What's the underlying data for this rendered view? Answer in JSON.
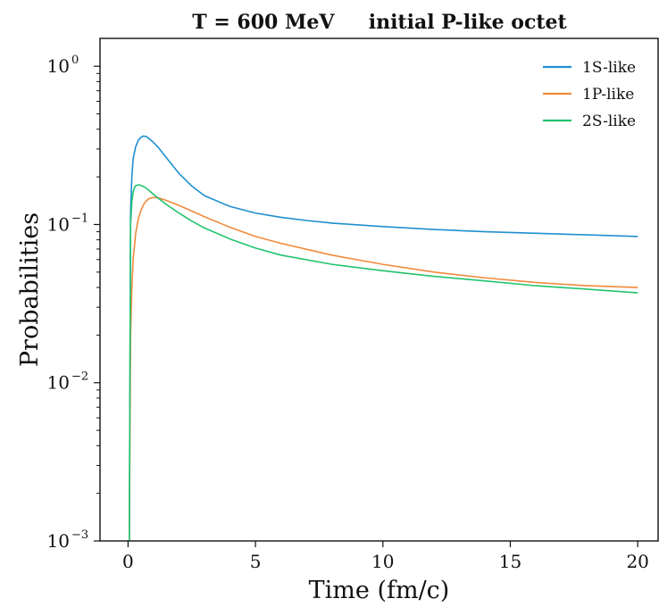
{
  "chart_data": {
    "type": "line",
    "title": "T = 600 MeV     initial P-like octet",
    "xlabel": "Time (fm/c)",
    "ylabel": "Probabilities",
    "xlim": [
      -1.1,
      20.8
    ],
    "ylim": [
      0.001,
      1.5
    ],
    "yscale": "log",
    "xticks": [
      0,
      5,
      10,
      15,
      20
    ],
    "xtick_labels": [
      "0",
      "5",
      "10",
      "15",
      "20"
    ],
    "yticks": [
      {
        "value": 1,
        "base": "10",
        "exp": "0"
      },
      {
        "value": 0.1,
        "base": "10",
        "exp": "−1"
      },
      {
        "value": 0.01,
        "base": "10",
        "exp": "−2"
      },
      {
        "value": 0.001,
        "base": "10",
        "exp": "−3"
      }
    ],
    "grid": false,
    "legend_position": "top-right",
    "series": [
      {
        "name": "1S-like",
        "color": "#1f8fd0",
        "x": [
          0.05,
          0.1,
          0.15,
          0.2,
          0.3,
          0.4,
          0.5,
          0.6,
          0.7,
          0.8,
          1.0,
          1.2,
          1.5,
          2,
          2.5,
          3,
          4,
          5,
          6,
          7,
          8,
          10,
          12,
          14,
          16,
          18,
          20
        ],
        "y": [
          0.001,
          0.12,
          0.2,
          0.26,
          0.31,
          0.34,
          0.355,
          0.362,
          0.36,
          0.352,
          0.33,
          0.305,
          0.265,
          0.21,
          0.175,
          0.152,
          0.13,
          0.118,
          0.111,
          0.106,
          0.102,
          0.097,
          0.093,
          0.09,
          0.088,
          0.086,
          0.084
        ]
      },
      {
        "name": "1P-like",
        "color": "#f08a3c",
        "x": [
          0.05,
          0.1,
          0.15,
          0.2,
          0.3,
          0.4,
          0.5,
          0.6,
          0.7,
          0.8,
          0.9,
          1.0,
          1.1,
          1.2,
          1.5,
          2,
          3,
          4,
          5,
          6,
          8,
          10,
          12,
          14,
          16,
          18,
          20
        ],
        "y": [
          0.001,
          0.02,
          0.04,
          0.06,
          0.088,
          0.108,
          0.122,
          0.133,
          0.14,
          0.145,
          0.147,
          0.148,
          0.148,
          0.147,
          0.142,
          0.132,
          0.112,
          0.096,
          0.084,
          0.076,
          0.064,
          0.056,
          0.05,
          0.046,
          0.043,
          0.041,
          0.04
        ]
      },
      {
        "name": "2S-like",
        "color": "#22c36e",
        "x": [
          0.05,
          0.1,
          0.15,
          0.2,
          0.25,
          0.3,
          0.4,
          0.5,
          0.6,
          0.7,
          0.8,
          1.0,
          1.2,
          1.5,
          2,
          2.5,
          3,
          4,
          5,
          6,
          8,
          10,
          12,
          14,
          16,
          18,
          20
        ],
        "y": [
          0.001,
          0.1,
          0.14,
          0.16,
          0.17,
          0.176,
          0.178,
          0.177,
          0.174,
          0.17,
          0.165,
          0.155,
          0.146,
          0.134,
          0.118,
          0.105,
          0.095,
          0.081,
          0.071,
          0.064,
          0.056,
          0.051,
          0.047,
          0.044,
          0.041,
          0.039,
          0.037
        ]
      }
    ]
  }
}
